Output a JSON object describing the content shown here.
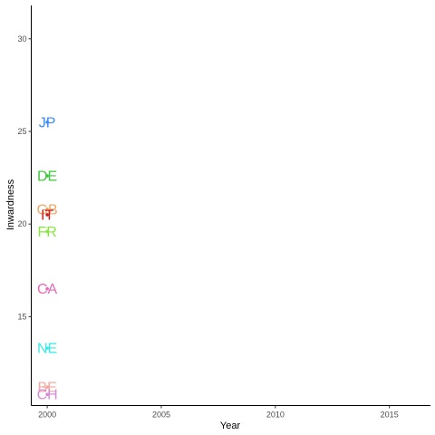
{
  "chart_data": {
    "type": "scatter",
    "title": "",
    "xlabel": "Year",
    "ylabel": "Inwardness",
    "xlim": [
      1999.3,
      2016.8
    ],
    "ylim": [
      10.2,
      31.8
    ],
    "xticks": [
      2000,
      2005,
      2010,
      2015
    ],
    "yticks": [
      15,
      20,
      25,
      30
    ],
    "grid": false,
    "legend": "none",
    "points": [
      {
        "label": "JP",
        "x": 2000,
        "y": 25.5,
        "color": "#3D8BFF"
      },
      {
        "label": "DE",
        "x": 2000,
        "y": 22.6,
        "color": "#3CC83C"
      },
      {
        "label": "GB",
        "x": 2000,
        "y": 20.8,
        "color": "#F0A868"
      },
      {
        "label": "IT",
        "x": 2000,
        "y": 20.5,
        "color": "#D01C1C"
      },
      {
        "label": "FR",
        "x": 2000,
        "y": 19.6,
        "color": "#86E83C"
      },
      {
        "label": "CA",
        "x": 2000,
        "y": 16.5,
        "color": "#E868B8"
      },
      {
        "label": "NE",
        "x": 2000,
        "y": 13.3,
        "color": "#3CE8E8"
      },
      {
        "label": "BE",
        "x": 2000,
        "y": 11.2,
        "color": "#F4A8A0"
      },
      {
        "label": "CH",
        "x": 2000,
        "y": 10.8,
        "color": "#D88CD8"
      }
    ]
  }
}
